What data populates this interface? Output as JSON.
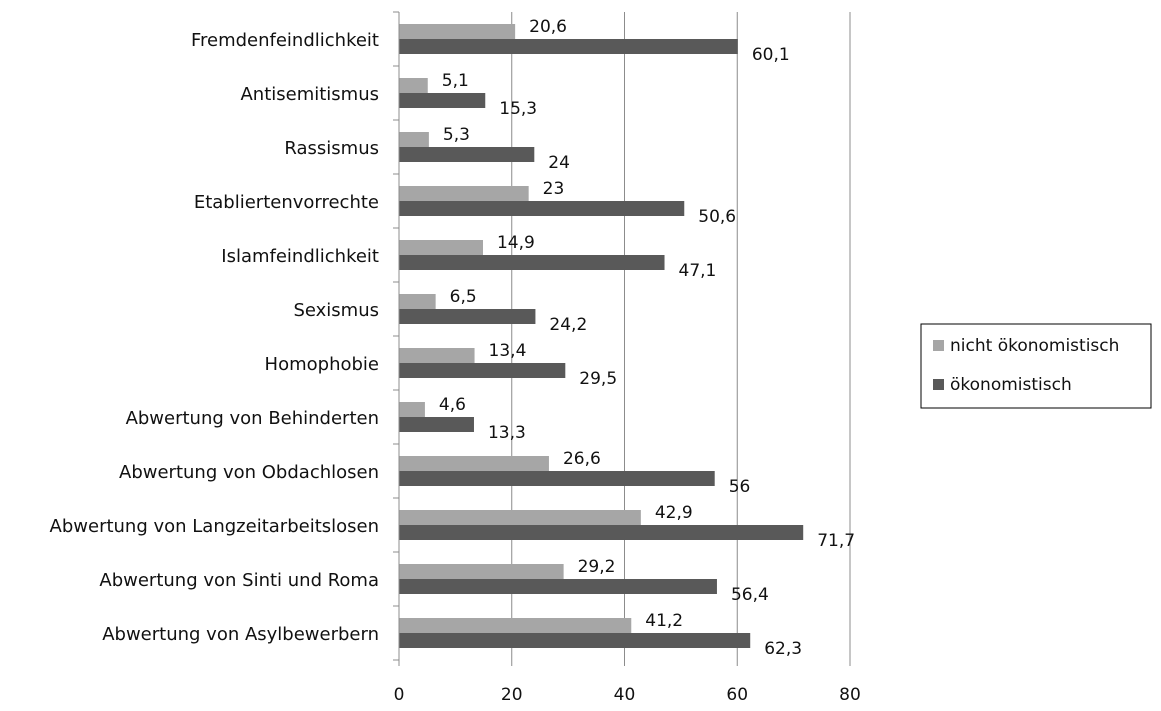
{
  "chart_data": {
    "type": "bar",
    "orientation": "horizontal",
    "title": "",
    "xlabel": "",
    "ylabel": "",
    "xlim": [
      0,
      80
    ],
    "ticks": [
      "0",
      "20",
      "40",
      "60",
      "80"
    ],
    "tick_values": [
      0,
      20,
      40,
      60,
      80
    ],
    "grid": true,
    "legend_position": "right",
    "categories": [
      "Fremdenfeindlichkeit",
      "Antisemitismus",
      "Rassismus",
      "Etabliertenvorrechte",
      "Islamfeindlichkeit",
      "Sexismus",
      "Homophobie",
      "Abwertung von Behinderten",
      "Abwertung von Obdachlosen",
      "Abwertung von Langzeitarbeitslosen",
      "Abwertung von Sinti und  Roma",
      "Abwertung von Asylbewerbern"
    ],
    "series": [
      {
        "name": "nicht ökonomistisch",
        "color": "#a6a6a6",
        "values": [
          20.6,
          5.1,
          5.3,
          23,
          14.9,
          6.5,
          13.4,
          4.6,
          26.6,
          42.9,
          29.2,
          41.2
        ],
        "labels": [
          "20,6",
          "5,1",
          "5,3",
          "23",
          "14,9",
          "6,5",
          "13,4",
          "4,6",
          "26,6",
          "42,9",
          "29,2",
          "41,2"
        ]
      },
      {
        "name": "ökonomistisch",
        "color": "#595959",
        "values": [
          60.1,
          15.3,
          24,
          50.6,
          47.1,
          24.2,
          29.5,
          13.3,
          56,
          71.7,
          56.4,
          62.3
        ],
        "labels": [
          "60,1",
          "15,3",
          "24",
          "50,6",
          "47,1",
          "24,2",
          "29,5",
          "13,3",
          "56",
          "71,7",
          "56,4",
          "62,3"
        ]
      }
    ]
  }
}
